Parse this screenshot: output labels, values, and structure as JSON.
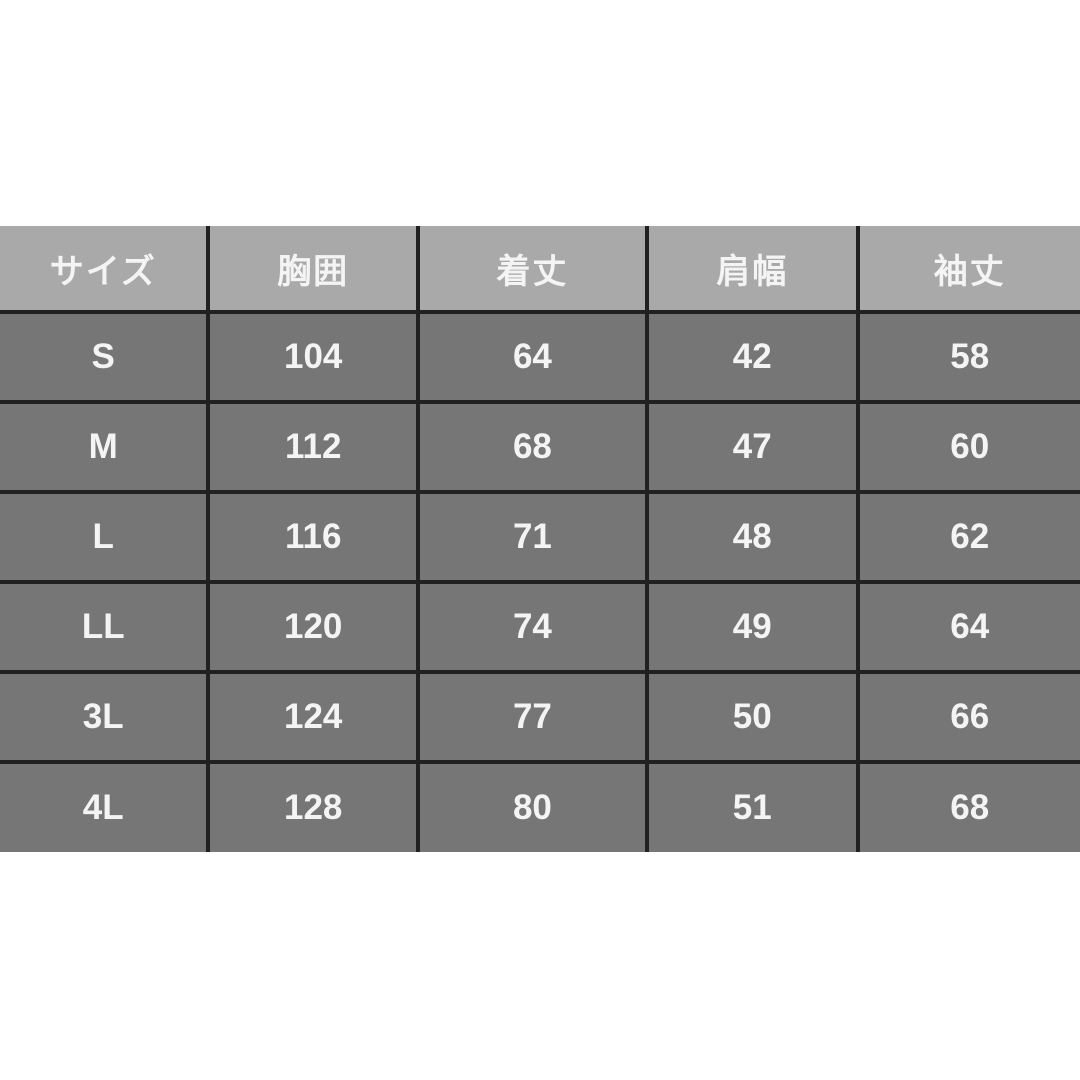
{
  "colors": {
    "page_background": "#ffffff",
    "header_background": "#a9a9a9",
    "cell_background": "#767676",
    "grid_border": "#212121",
    "text": "#f4f4f4"
  },
  "chart_data": {
    "type": "table",
    "title": "",
    "columns": [
      "サイズ",
      "胸囲",
      "着丈",
      "肩幅",
      "袖丈"
    ],
    "rows": [
      [
        "S",
        "104",
        "64",
        "42",
        "58"
      ],
      [
        "M",
        "112",
        "68",
        "47",
        "60"
      ],
      [
        "L",
        "116",
        "71",
        "48",
        "62"
      ],
      [
        "LL",
        "120",
        "74",
        "49",
        "64"
      ],
      [
        "3L",
        "124",
        "77",
        "50",
        "66"
      ],
      [
        "4L",
        "128",
        "80",
        "51",
        "68"
      ]
    ]
  },
  "table": {
    "headers": [
      "サイズ",
      "胸囲",
      "着丈",
      "肩幅",
      "袖丈"
    ],
    "rows": [
      [
        "S",
        "104",
        "64",
        "42",
        "58"
      ],
      [
        "M",
        "112",
        "68",
        "47",
        "60"
      ],
      [
        "L",
        "116",
        "71",
        "48",
        "62"
      ],
      [
        "LL",
        "120",
        "74",
        "49",
        "64"
      ],
      [
        "3L",
        "124",
        "77",
        "50",
        "66"
      ],
      [
        "4L",
        "128",
        "80",
        "51",
        "68"
      ]
    ]
  }
}
